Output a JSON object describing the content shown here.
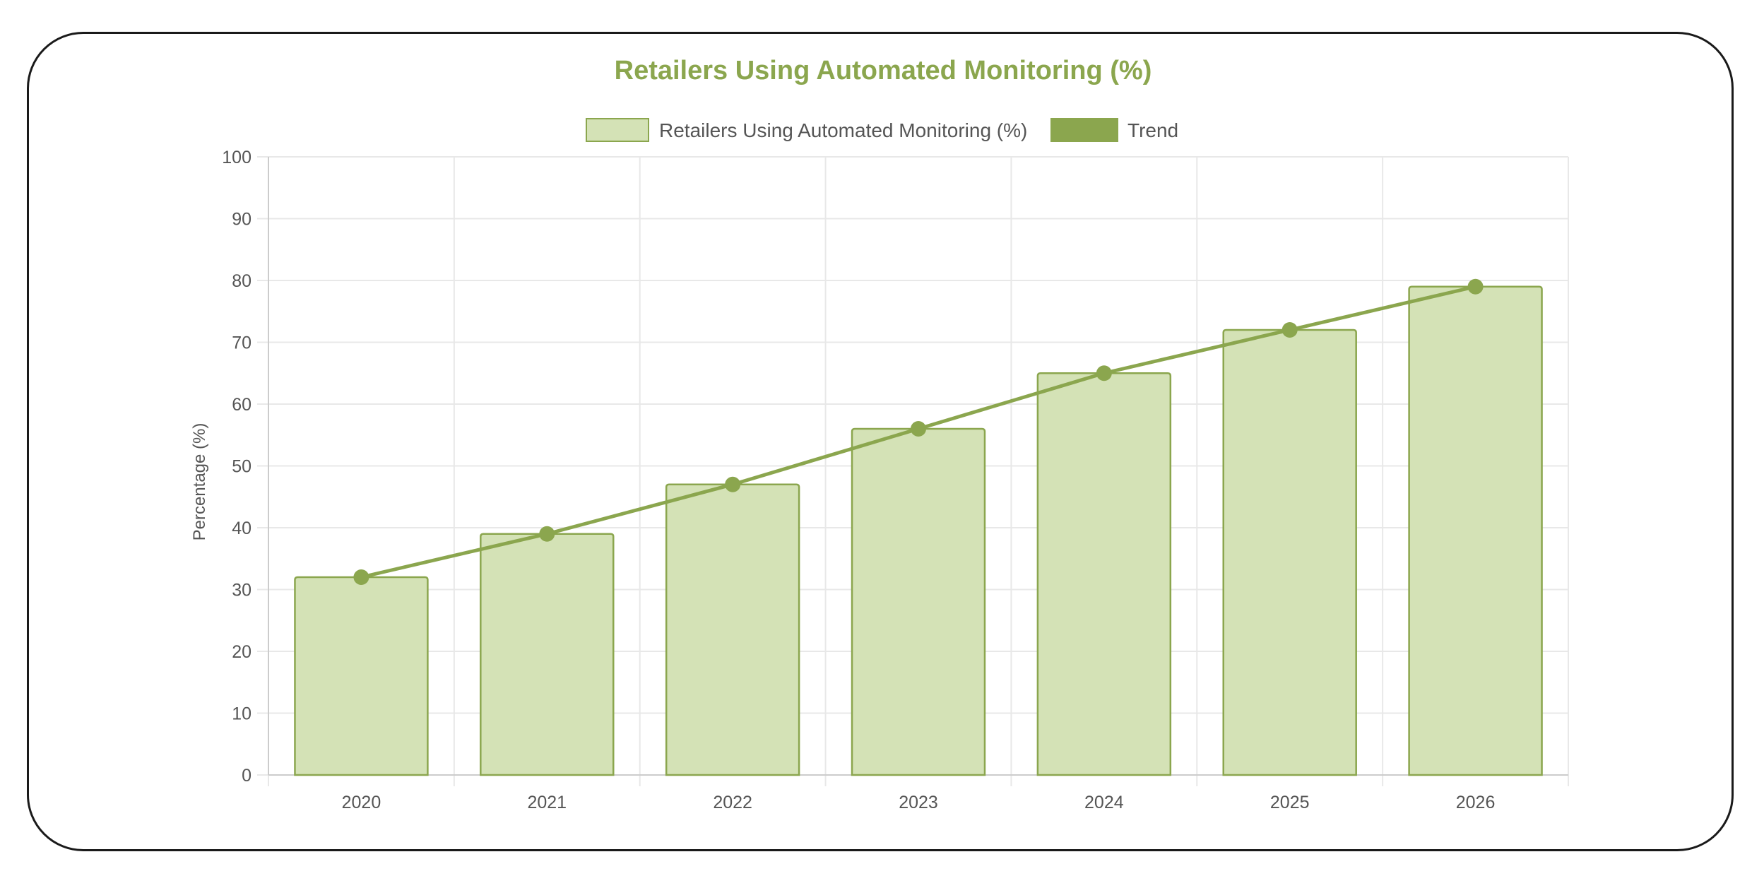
{
  "chart_data": {
    "type": "bar",
    "title": "Retailers Using Automated Monitoring (%)",
    "ylabel": "Percentage (%)",
    "xlabel": "",
    "categories": [
      "2020",
      "2021",
      "2022",
      "2023",
      "2024",
      "2025",
      "2026"
    ],
    "series": [
      {
        "name": "Retailers Using Automated Monitoring (%)",
        "type": "bar",
        "values": [
          32,
          39,
          47,
          56,
          65,
          72,
          79
        ],
        "color": "#d4e2b6",
        "border_color": "#8ba64e"
      },
      {
        "name": "Trend",
        "type": "line",
        "values": [
          32,
          39,
          47,
          56,
          65,
          72,
          79
        ],
        "color": "#8ba64e"
      }
    ],
    "ylim": [
      0,
      100
    ],
    "yticks": [
      0,
      10,
      20,
      30,
      40,
      50,
      60,
      70,
      80,
      90,
      100
    ],
    "grid": true,
    "legend_position": "top"
  },
  "colors": {
    "title": "#8ba64e",
    "bar_fill": "#d4e2b6",
    "bar_border": "#8ba64e",
    "trend": "#8ba64e",
    "grid": "#e8e8e8",
    "text": "#555555"
  }
}
